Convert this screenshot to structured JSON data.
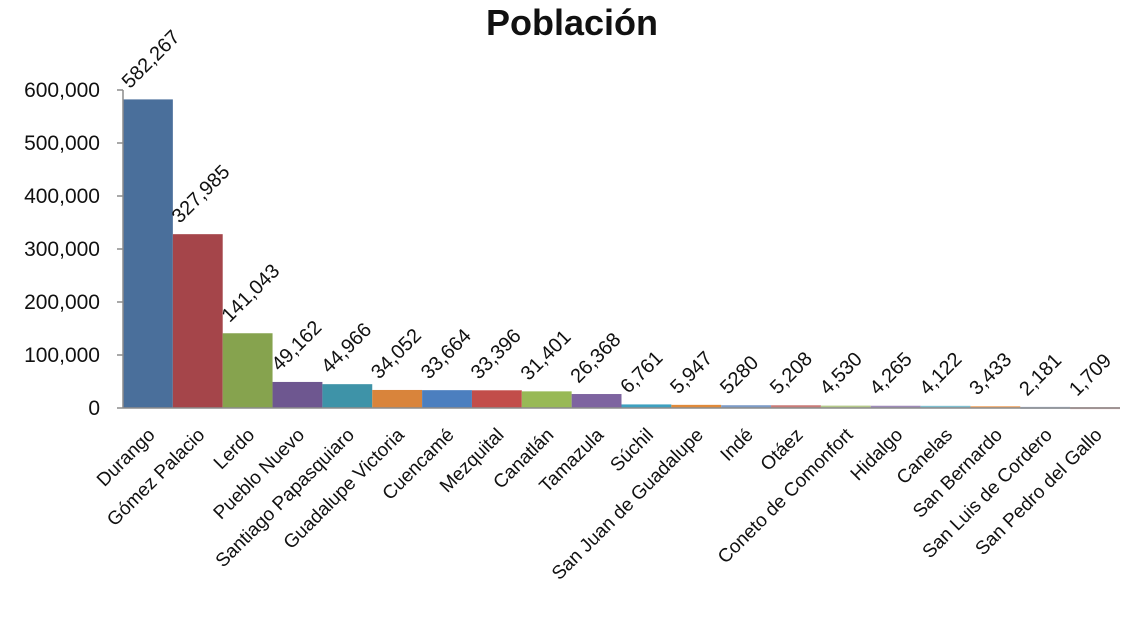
{
  "chart_data": {
    "type": "bar",
    "title": "Población",
    "xlabel": "",
    "ylabel": "",
    "ylim": [
      0,
      600000
    ],
    "yticks": [
      0,
      100000,
      200000,
      300000,
      400000,
      500000,
      600000
    ],
    "ytick_labels": [
      "0",
      "100,000",
      "200,000",
      "300,000",
      "400,000",
      "500,000",
      "600,000"
    ],
    "grid": false,
    "legend": "none",
    "categories": [
      "Durango",
      "Gómez Palacio",
      "Lerdo",
      "Pueblo Nuevo",
      "Santiago Papasquiaro",
      "Guadalupe Victoria",
      "Cuencamé",
      "Mezquital",
      "Canatlán",
      "Tamazula",
      "Súchil",
      "San Juan de Guadalupe",
      "Indé",
      "Otáez",
      "Coneto de Comonfort",
      "Hidalgo",
      "Canelas",
      "San Bernardo",
      "San Luis de Cordero",
      "San Pedro del Gallo"
    ],
    "values": [
      582267,
      327985,
      141043,
      49162,
      44966,
      34052,
      33664,
      33396,
      31401,
      26368,
      6761,
      5947,
      5280,
      5208,
      4530,
      4265,
      4122,
      3433,
      2181,
      1709
    ],
    "data_labels": [
      "582,267",
      "327,985",
      "141,043",
      "49,162",
      "44,966",
      "34,052",
      "33,664",
      "33,396",
      "31,401",
      "26,368",
      "6,761",
      "5,947",
      "5280",
      "5,208",
      "4,530",
      "4,265",
      "4,122",
      "3,433",
      "2,181",
      "1,709"
    ],
    "colors": [
      "#4A6F9B",
      "#A5454A",
      "#86A34E",
      "#6E5790",
      "#3E93A8",
      "#D9843B",
      "#4C7FBF",
      "#C24D4A",
      "#98B956",
      "#7E64A0",
      "#3EA0C0",
      "#E08A3A",
      "#7D9BC6",
      "#C97B78",
      "#B5C98A",
      "#9D8BB8",
      "#80BFD0",
      "#F0A766",
      "#A9BBD8",
      "#D8A6A4"
    ]
  }
}
